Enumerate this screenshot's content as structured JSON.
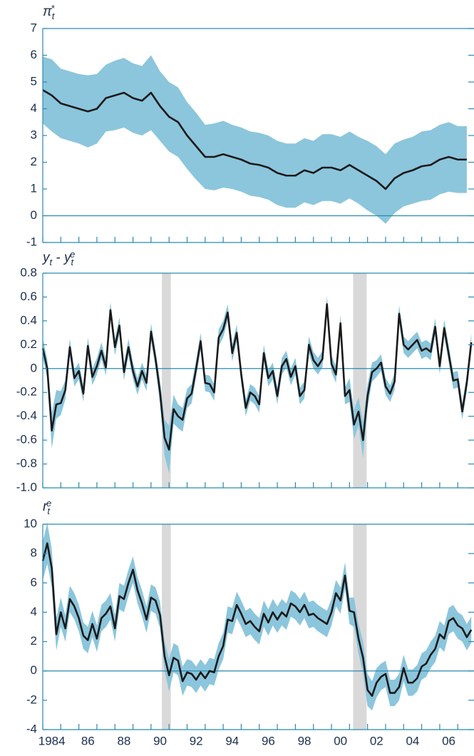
{
  "chart_data": [
    {
      "type": "line",
      "title_parts": [
        {
          "text": "π"
        },
        {
          "text": "t",
          "pos": "sub"
        },
        {
          "text": "*",
          "pos": "sup"
        }
      ],
      "line_color": "#1a1a1a",
      "band_color": "#8cc6dc",
      "ylim": [
        -1,
        7
      ],
      "yticks": [
        -1,
        0,
        1,
        2,
        3,
        4,
        5,
        6,
        7
      ],
      "x": [
        1984,
        1984.5,
        1985,
        1985.5,
        1986,
        1986.5,
        1987,
        1987.5,
        1988,
        1988.5,
        1989,
        1989.5,
        1990,
        1990.5,
        1991,
        1991.5,
        1992,
        1992.5,
        1993,
        1993.5,
        1994,
        1994.5,
        1995,
        1995.5,
        1996,
        1996.5,
        1997,
        1997.5,
        1998,
        1998.5,
        1999,
        1999.5,
        2000,
        2000.5,
        2001,
        2001.5,
        2002,
        2002.5,
        2003,
        2003.5,
        2004,
        2004.5,
        2005,
        2005.5,
        2006,
        2006.5,
        2007,
        2007.5
      ],
      "values": [
        4.7,
        4.5,
        4.2,
        4.1,
        4.0,
        3.9,
        4.0,
        4.4,
        4.5,
        4.6,
        4.4,
        4.3,
        4.6,
        4.1,
        3.7,
        3.5,
        3.0,
        2.6,
        2.2,
        2.2,
        2.3,
        2.2,
        2.1,
        1.95,
        1.9,
        1.8,
        1.6,
        1.5,
        1.5,
        1.7,
        1.6,
        1.8,
        1.8,
        1.7,
        1.9,
        1.7,
        1.5,
        1.3,
        1.0,
        1.4,
        1.6,
        1.7,
        1.85,
        1.9,
        2.1,
        2.2,
        2.1,
        2.1
      ],
      "error": [
        1.25,
        1.35,
        1.3,
        1.3,
        1.3,
        1.35,
        1.3,
        1.25,
        1.3,
        1.3,
        1.3,
        1.3,
        1.4,
        1.3,
        1.3,
        1.3,
        1.25,
        1.25,
        1.2,
        1.25,
        1.25,
        1.2,
        1.2,
        1.2,
        1.2,
        1.2,
        1.2,
        1.2,
        1.2,
        1.2,
        1.2,
        1.25,
        1.25,
        1.25,
        1.25,
        1.25,
        1.3,
        1.3,
        1.3,
        1.3,
        1.25,
        1.25,
        1.3,
        1.3,
        1.3,
        1.3,
        1.25,
        1.25
      ]
    },
    {
      "type": "line",
      "title_parts": [
        {
          "text": "y"
        },
        {
          "text": "t",
          "pos": "sub"
        },
        {
          "text": " - y"
        },
        {
          "text": "t",
          "pos": "sub"
        },
        {
          "text": "e",
          "pos": "sup"
        }
      ],
      "line_color": "#1a1a1a",
      "band_color": "#8cc6dc",
      "shade_color": "#d9d9d9",
      "shaded": [
        [
          1990.6,
          1991.1
        ],
        [
          2001.2,
          2001.95
        ]
      ],
      "ylim": [
        -1,
        0.8
      ],
      "yticks": [
        {
          "value": -1,
          "label": "-1.0"
        },
        -0.8,
        -0.6,
        -0.4,
        -0.2,
        0,
        0.2,
        0.4,
        0.6,
        0.8
      ],
      "x": [
        1984,
        1984.25,
        1984.5,
        1984.75,
        1985,
        1985.25,
        1985.5,
        1985.75,
        1986,
        1986.25,
        1986.5,
        1986.75,
        1987,
        1987.25,
        1987.5,
        1987.75,
        1988,
        1988.25,
        1988.5,
        1988.75,
        1989,
        1989.25,
        1989.5,
        1989.75,
        1990,
        1990.25,
        1990.5,
        1990.75,
        1991,
        1991.25,
        1991.5,
        1991.75,
        1992,
        1992.25,
        1992.5,
        1992.75,
        1993,
        1993.25,
        1993.5,
        1993.75,
        1994,
        1994.25,
        1994.5,
        1994.75,
        1995,
        1995.25,
        1995.5,
        1995.75,
        1996,
        1996.25,
        1996.5,
        1996.75,
        1997,
        1997.25,
        1997.5,
        1997.75,
        1998,
        1998.25,
        1998.5,
        1998.75,
        1999,
        1999.25,
        1999.5,
        1999.75,
        2000,
        2000.25,
        2000.5,
        2000.75,
        2001,
        2001.25,
        2001.5,
        2001.75,
        2002,
        2002.25,
        2002.5,
        2002.75,
        2003,
        2003.25,
        2003.5,
        2003.75,
        2004,
        2004.25,
        2004.5,
        2004.75,
        2005,
        2005.25,
        2005.5,
        2005.75,
        2006,
        2006.25,
        2006.5,
        2006.75,
        2007,
        2007.25,
        2007.5,
        2007.75
      ],
      "values": [
        0.17,
        0.0,
        -0.52,
        -0.3,
        -0.29,
        -0.18,
        0.18,
        -0.08,
        -0.02,
        -0.21,
        0.19,
        -0.07,
        0.02,
        0.15,
        0.01,
        0.49,
        0.18,
        0.36,
        -0.03,
        0.18,
        -0.02,
        -0.15,
        -0.02,
        -0.12,
        0.31,
        0.08,
        -0.2,
        -0.58,
        -0.68,
        -0.34,
        -0.4,
        -0.43,
        -0.25,
        -0.21,
        0.0,
        0.23,
        -0.12,
        -0.13,
        -0.2,
        0.26,
        0.33,
        0.47,
        0.13,
        0.3,
        -0.05,
        -0.33,
        -0.2,
        -0.23,
        -0.3,
        0.13,
        -0.08,
        -0.02,
        -0.23,
        0.02,
        0.08,
        -0.07,
        0.02,
        -0.23,
        -0.18,
        0.2,
        0.07,
        0.02,
        0.08,
        0.54,
        0.04,
        -0.05,
        0.38,
        -0.23,
        -0.18,
        -0.47,
        -0.36,
        -0.6,
        -0.23,
        -0.03,
        0.0,
        0.05,
        -0.15,
        -0.21,
        -0.11,
        0.46,
        0.2,
        0.16,
        0.2,
        0.24,
        0.15,
        0.17,
        0.14,
        0.35,
        0.02,
        0.34,
        0.12,
        -0.1,
        -0.09,
        -0.36,
        -0.12,
        0.22
      ],
      "error": [
        0.08,
        0.08,
        0.15,
        0.12,
        0.1,
        0.08,
        0.07,
        0.07,
        0.07,
        0.07,
        0.07,
        0.07,
        0.07,
        0.07,
        0.07,
        0.07,
        0.07,
        0.07,
        0.07,
        0.07,
        0.07,
        0.07,
        0.07,
        0.07,
        0.07,
        0.07,
        0.1,
        0.15,
        0.2,
        0.12,
        0.1,
        0.1,
        0.08,
        0.08,
        0.07,
        0.07,
        0.07,
        0.07,
        0.07,
        0.07,
        0.07,
        0.07,
        0.07,
        0.07,
        0.07,
        0.07,
        0.07,
        0.07,
        0.07,
        0.07,
        0.07,
        0.07,
        0.07,
        0.07,
        0.07,
        0.07,
        0.07,
        0.07,
        0.07,
        0.07,
        0.07,
        0.07,
        0.07,
        0.07,
        0.07,
        0.07,
        0.07,
        0.07,
        0.1,
        0.12,
        0.12,
        0.15,
        0.1,
        0.08,
        0.07,
        0.07,
        0.07,
        0.07,
        0.07,
        0.07,
        0.07,
        0.07,
        0.07,
        0.07,
        0.07,
        0.07,
        0.07,
        0.07,
        0.07,
        0.07,
        0.07,
        0.07,
        0.07,
        0.07,
        0.07,
        0.08
      ]
    },
    {
      "type": "line",
      "title_parts": [
        {
          "text": "r"
        },
        {
          "text": "t",
          "pos": "sub"
        },
        {
          "text": "e",
          "pos": "sup"
        }
      ],
      "line_color": "#1a1a1a",
      "band_color": "#8cc6dc",
      "shade_color": "#d9d9d9",
      "shaded": [
        [
          1990.6,
          1991.1
        ],
        [
          2001.2,
          2001.95
        ]
      ],
      "ylim": [
        -4,
        10
      ],
      "yticks": [
        -4,
        -2,
        0,
        2,
        4,
        6,
        8,
        10
      ],
      "xlim": [
        1984,
        2007.9
      ],
      "xticks": [
        {
          "value": 1984,
          "label": "1984"
        },
        {
          "value": 1986,
          "label": "86"
        },
        {
          "value": 1988,
          "label": "88"
        },
        {
          "value": 1990,
          "label": "90"
        },
        {
          "value": 1992,
          "label": "92"
        },
        {
          "value": 1994,
          "label": "94"
        },
        {
          "value": 1996,
          "label": "96"
        },
        {
          "value": 1998,
          "label": "98"
        },
        {
          "value": 2000,
          "label": "00"
        },
        {
          "value": 2002,
          "label": "02"
        },
        {
          "value": 2004,
          "label": "04"
        },
        {
          "value": 2006,
          "label": "06"
        }
      ],
      "minor_xticks": [
        1985,
        1987,
        1989,
        1991,
        1993,
        1995,
        1997,
        1999,
        2001,
        2003,
        2005,
        2007
      ],
      "x": [
        1984,
        1984.25,
        1984.5,
        1984.75,
        1985,
        1985.25,
        1985.5,
        1985.75,
        1986,
        1986.25,
        1986.5,
        1986.75,
        1987,
        1987.25,
        1987.5,
        1987.75,
        1988,
        1988.25,
        1988.5,
        1988.75,
        1989,
        1989.25,
        1989.5,
        1989.75,
        1990,
        1990.25,
        1990.5,
        1990.75,
        1991,
        1991.25,
        1991.5,
        1991.75,
        1992,
        1992.25,
        1992.5,
        1992.75,
        1993,
        1993.25,
        1993.5,
        1993.75,
        1994,
        1994.25,
        1994.5,
        1994.75,
        1995,
        1995.25,
        1995.5,
        1995.75,
        1996,
        1996.25,
        1996.5,
        1996.75,
        1997,
        1997.25,
        1997.5,
        1997.75,
        1998,
        1998.25,
        1998.5,
        1998.75,
        1999,
        1999.25,
        1999.5,
        1999.75,
        2000,
        2000.25,
        2000.5,
        2000.75,
        2001,
        2001.25,
        2001.5,
        2001.75,
        2002,
        2002.25,
        2002.5,
        2002.75,
        2003,
        2003.25,
        2003.5,
        2003.75,
        2004,
        2004.25,
        2004.5,
        2004.75,
        2005,
        2005.25,
        2005.5,
        2005.75,
        2006,
        2006.25,
        2006.5,
        2006.75,
        2007,
        2007.25,
        2007.5,
        2007.75
      ],
      "values": [
        7.5,
        8.7,
        7.0,
        2.5,
        4.0,
        2.9,
        4.9,
        4.4,
        3.6,
        2.4,
        2.1,
        3.2,
        2.2,
        3.6,
        3.9,
        4.4,
        2.9,
        5.1,
        4.9,
        6.0,
        6.9,
        5.5,
        4.6,
        3.5,
        5.0,
        4.8,
        3.8,
        1.0,
        -0.3,
        0.9,
        0.7,
        -0.7,
        -0.1,
        -0.2,
        -0.6,
        -0.1,
        -0.5,
        0.0,
        -0.1,
        1.0,
        1.7,
        3.5,
        3.4,
        4.5,
        3.9,
        3.2,
        3.4,
        3.0,
        2.7,
        3.9,
        3.3,
        4.0,
        3.5,
        4.0,
        3.7,
        4.6,
        4.4,
        4.0,
        4.5,
        3.8,
        3.9,
        3.6,
        3.4,
        3.2,
        4.0,
        5.3,
        4.8,
        6.5,
        4.1,
        4.0,
        2.2,
        0.9,
        -1.3,
        -1.7,
        -0.8,
        -0.4,
        -0.2,
        -1.5,
        -1.5,
        -1.1,
        0.2,
        -0.8,
        -0.8,
        -0.5,
        0.3,
        0.5,
        1.1,
        1.5,
        2.5,
        2.2,
        3.4,
        3.6,
        3.1,
        2.9,
        2.3,
        2.8
      ],
      "error": [
        1.3,
        1.4,
        1.3,
        1.1,
        1.0,
        0.9,
        0.9,
        0.9,
        0.9,
        0.9,
        0.9,
        0.9,
        0.9,
        0.9,
        0.9,
        0.9,
        0.9,
        0.9,
        0.9,
        0.9,
        0.9,
        0.9,
        0.9,
        0.9,
        0.9,
        0.9,
        0.9,
        1.0,
        1.1,
        1.0,
        1.0,
        1.0,
        0.9,
        0.9,
        0.9,
        0.9,
        0.9,
        0.9,
        0.9,
        0.9,
        0.9,
        0.9,
        0.9,
        0.9,
        0.9,
        0.9,
        0.9,
        0.9,
        0.9,
        0.9,
        0.9,
        0.9,
        0.9,
        0.9,
        0.9,
        0.9,
        0.9,
        0.9,
        0.9,
        0.9,
        0.9,
        0.9,
        0.9,
        0.9,
        0.9,
        0.9,
        0.9,
        0.9,
        0.9,
        1.0,
        1.0,
        1.1,
        1.1,
        1.0,
        1.0,
        0.9,
        0.9,
        0.9,
        0.9,
        0.9,
        0.9,
        0.9,
        0.9,
        0.9,
        0.9,
        0.9,
        0.9,
        0.9,
        0.9,
        0.9,
        0.9,
        0.9,
        0.9,
        0.9,
        0.9,
        0.9
      ]
    }
  ]
}
